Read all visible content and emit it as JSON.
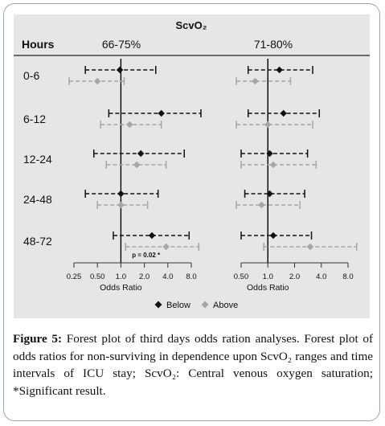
{
  "figure": {
    "caption_label": "Figure 5:",
    "caption_text": "Forest plot of third days odds ration analyses. Forest plot of odds ratios for non-surviving in dependence upon ScvO₂ ranges and time intervals of ICU stay; ScvO₂: Central venous oxygen saturation; *Significant result."
  },
  "chart_data": {
    "type": "forest",
    "title": "ScvO₂",
    "row_header": "Hours",
    "xlabel": "Odds Ratio",
    "x_scale": "log",
    "legend_position": "bottom",
    "colors": {
      "Below": "#111111",
      "Above": "#a6a6a6"
    },
    "legend": [
      {
        "name": "Below",
        "color": "#111111",
        "marker": "diamond"
      },
      {
        "name": "Above",
        "color": "#a6a6a6",
        "marker": "diamond"
      }
    ],
    "rows": [
      "0-6",
      "6-12",
      "12-24",
      "24-48",
      "48-72"
    ],
    "panels": [
      {
        "header": "66-75%",
        "ticks": [
          0.25,
          0.5,
          1,
          2,
          4,
          8
        ],
        "tick_labels": [
          "0.25",
          "0.50",
          "1.0",
          "2.0",
          "4.0",
          "8.0"
        ],
        "xlim": [
          0.25,
          8
        ],
        "annotation": {
          "text": "p = 0.02 *",
          "row": "48-72"
        },
        "series": [
          {
            "name": "Below",
            "estimates": [
              {
                "or": 0.97,
                "lo": 0.35,
                "hi": 2.8
              },
              {
                "or": 3.3,
                "lo": 0.7,
                "hi": 13.5
              },
              {
                "or": 1.8,
                "lo": 0.45,
                "hi": 6.5
              },
              {
                "or": 1.0,
                "lo": 0.35,
                "hi": 3.0
              },
              {
                "or": 2.5,
                "lo": 0.8,
                "hi": 7.5
              }
            ]
          },
          {
            "name": "Above",
            "estimates": [
              {
                "or": 0.5,
                "lo": 0.2,
                "hi": 1.1
              },
              {
                "or": 1.3,
                "lo": 0.55,
                "hi": 3.3
              },
              {
                "or": 1.6,
                "lo": 0.65,
                "hi": 3.8
              },
              {
                "or": 1.0,
                "lo": 0.5,
                "hi": 2.2
              },
              {
                "or": 3.8,
                "lo": 1.15,
                "hi": 10.0
              }
            ]
          }
        ]
      },
      {
        "header": "71-80%",
        "ticks": [
          0.5,
          1,
          2,
          4,
          8
        ],
        "tick_labels": [
          "0.50",
          "1.0",
          "2.0",
          "4.0",
          "8.0"
        ],
        "xlim": [
          0.5,
          8
        ],
        "series": [
          {
            "name": "Below",
            "estimates": [
              {
                "or": 1.35,
                "lo": 0.6,
                "hi": 3.2
              },
              {
                "or": 1.5,
                "lo": 0.6,
                "hi": 3.8
              },
              {
                "or": 1.05,
                "lo": 0.5,
                "hi": 2.8
              },
              {
                "or": 1.05,
                "lo": 0.55,
                "hi": 2.6
              },
              {
                "or": 1.15,
                "lo": 0.5,
                "hi": 3.1
              }
            ]
          },
          {
            "name": "Above",
            "estimates": [
              {
                "or": 0.72,
                "lo": 0.38,
                "hi": 1.8
              },
              {
                "or": 1.0,
                "lo": 0.4,
                "hi": 3.2
              },
              {
                "or": 1.15,
                "lo": 0.5,
                "hi": 3.5
              },
              {
                "or": 0.85,
                "lo": 0.4,
                "hi": 2.3
              },
              {
                "or": 3.0,
                "lo": 0.9,
                "hi": 10.0
              }
            ]
          }
        ]
      }
    ]
  }
}
